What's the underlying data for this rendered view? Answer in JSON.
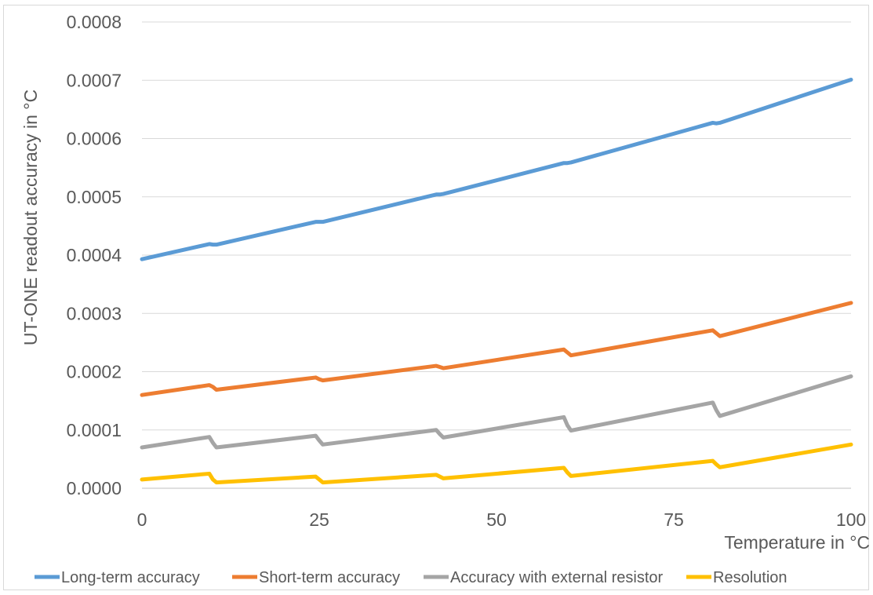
{
  "chart_data": {
    "type": "line",
    "title": "",
    "xlabel": "Temperature in °C",
    "ylabel": "UT-ONE readout accuracy in °C",
    "xlim": [
      0,
      100
    ],
    "ylim": [
      0,
      0.0008
    ],
    "xticks": [
      0,
      25,
      50,
      75,
      100
    ],
    "xtick_labels": [
      "0",
      "25",
      "50",
      "75",
      "100"
    ],
    "yticks": [
      0,
      0.0001,
      0.0002,
      0.0003,
      0.0004,
      0.0005,
      0.0006,
      0.0007,
      0.0008
    ],
    "ytick_labels": [
      "0.0000",
      "0.0001",
      "0.0002",
      "0.0003",
      "0.0004",
      "0.0005",
      "0.0006",
      "0.0007",
      "0.0008"
    ],
    "grid": "horizontal",
    "legend_position": "bottom",
    "series": [
      {
        "name": "Long-term accuracy",
        "color": "#5b9bd5",
        "points": [
          [
            0,
            0.000393
          ],
          [
            9.5,
            0.000419
          ],
          [
            10,
            0.000418
          ],
          [
            10.5,
            0.000418
          ],
          [
            24.5,
            0.000457
          ],
          [
            25,
            0.000457
          ],
          [
            25.5,
            0.000457
          ],
          [
            41.5,
            0.000504
          ],
          [
            42,
            0.000504
          ],
          [
            42.5,
            0.000505
          ],
          [
            59.5,
            0.000558
          ],
          [
            60,
            0.000558
          ],
          [
            60.5,
            0.000559
          ],
          [
            80.5,
            0.000627
          ],
          [
            81,
            0.000626
          ],
          [
            81.5,
            0.000627
          ],
          [
            100,
            0.000701
          ]
        ]
      },
      {
        "name": "Short-term accuracy",
        "color": "#ed7d31",
        "points": [
          [
            0,
            0.00016
          ],
          [
            9.5,
            0.000177
          ],
          [
            10,
            0.000174
          ],
          [
            10.5,
            0.000169
          ],
          [
            24.5,
            0.00019
          ],
          [
            25,
            0.000187
          ],
          [
            25.5,
            0.000185
          ],
          [
            41.5,
            0.00021
          ],
          [
            42,
            0.000208
          ],
          [
            42.5,
            0.000206
          ],
          [
            59.5,
            0.000238
          ],
          [
            60,
            0.000233
          ],
          [
            60.5,
            0.000228
          ],
          [
            80.5,
            0.000271
          ],
          [
            81,
            0.000266
          ],
          [
            81.5,
            0.000261
          ],
          [
            100,
            0.000318
          ]
        ]
      },
      {
        "name": "Accuracy with external resistor",
        "color": "#a5a5a5",
        "points": [
          [
            0,
            7e-05
          ],
          [
            9.5,
            8.8e-05
          ],
          [
            10,
            7.8e-05
          ],
          [
            10.5,
            7e-05
          ],
          [
            24.5,
            9e-05
          ],
          [
            25,
            8.2e-05
          ],
          [
            25.5,
            7.5e-05
          ],
          [
            41.5,
            0.0001
          ],
          [
            42,
            9.3e-05
          ],
          [
            42.5,
            8.7e-05
          ],
          [
            59.5,
            0.000122
          ],
          [
            60,
            0.000108
          ],
          [
            60.5,
            9.9e-05
          ],
          [
            80.5,
            0.000147
          ],
          [
            81,
            0.000134
          ],
          [
            81.5,
            0.000124
          ],
          [
            100,
            0.000192
          ]
        ]
      },
      {
        "name": "Resolution",
        "color": "#ffc000",
        "points": [
          [
            0,
            1.5e-05
          ],
          [
            9.5,
            2.5e-05
          ],
          [
            10,
            1.5e-05
          ],
          [
            10.5,
            1e-05
          ],
          [
            24.5,
            2e-05
          ],
          [
            25,
            1.5e-05
          ],
          [
            25.5,
            1e-05
          ],
          [
            41.5,
            2.3e-05
          ],
          [
            42,
            2e-05
          ],
          [
            42.5,
            1.7e-05
          ],
          [
            59.5,
            3.5e-05
          ],
          [
            60,
            2.7e-05
          ],
          [
            60.5,
            2.1e-05
          ],
          [
            80.5,
            4.7e-05
          ],
          [
            81,
            4.1e-05
          ],
          [
            81.5,
            3.6e-05
          ],
          [
            100,
            7.5e-05
          ]
        ]
      }
    ]
  }
}
